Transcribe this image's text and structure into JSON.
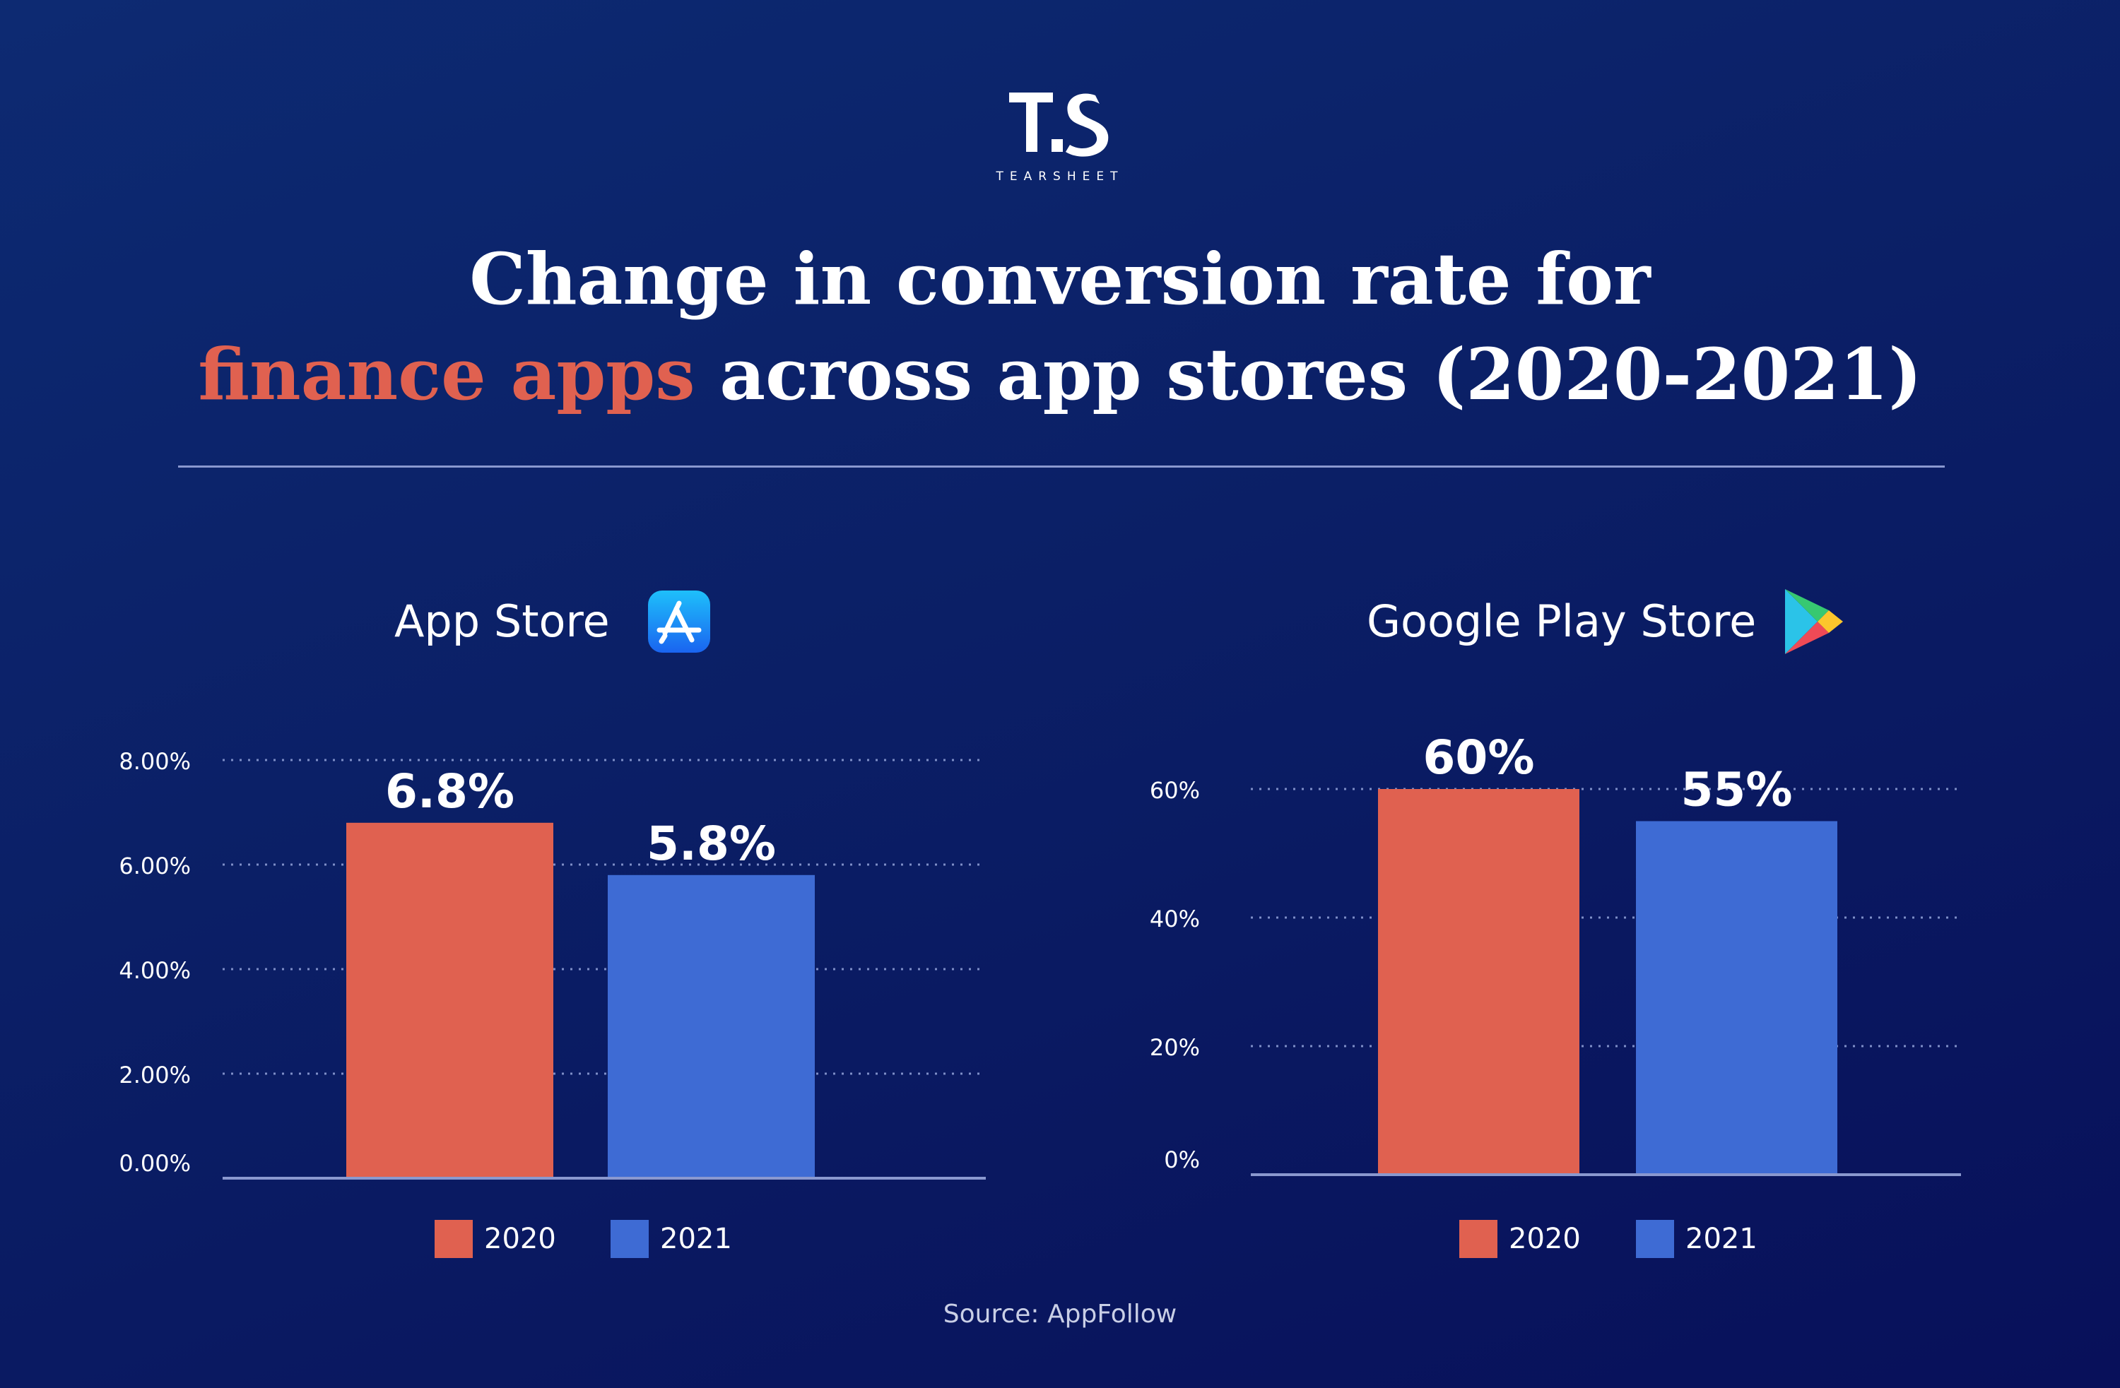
{
  "brand": {
    "name": "TEARSHEET",
    "colors": {
      "accent_red": "#e06150",
      "bar_blue": "#3e6bd4",
      "background": "#0b1f66"
    }
  },
  "title": {
    "line1": "Change in conversion rate for",
    "line2_accent": "finance apps",
    "line2_rest": " across app stores (2020-2021)"
  },
  "chart_data": [
    {
      "type": "bar",
      "title": "App Store",
      "icon": "app-store-icon",
      "categories": [
        "2020",
        "2021"
      ],
      "values": [
        6.8,
        5.8
      ],
      "value_labels": [
        "6.8%",
        "5.8%"
      ],
      "colors": [
        "#e06150",
        "#3e6bd4"
      ],
      "ylim": [
        0,
        8
      ],
      "y_ticks": [
        0,
        2,
        4,
        6,
        8
      ],
      "y_tick_labels": [
        "0.00%",
        "2.00%",
        "4.00%",
        "6.00%",
        "8.00%"
      ],
      "grid": "dotted horizontal",
      "legend": "bottom",
      "legend_entries": [
        "2020",
        "2021"
      ]
    },
    {
      "type": "bar",
      "title": "Google Play Store",
      "icon": "google-play-icon",
      "categories": [
        "2020",
        "2021"
      ],
      "values": [
        60,
        55
      ],
      "value_labels": [
        "60%",
        "55%"
      ],
      "colors": [
        "#e06150",
        "#3e6bd4"
      ],
      "ylim": [
        0,
        80
      ],
      "y_ticks": [
        0,
        20,
        40,
        60
      ],
      "y_tick_labels": [
        "0%",
        "20%",
        "40%",
        "60%"
      ],
      "grid": "dotted horizontal",
      "legend": "bottom",
      "legend_entries": [
        "2020",
        "2021"
      ]
    }
  ],
  "source": "Source: AppFollow"
}
